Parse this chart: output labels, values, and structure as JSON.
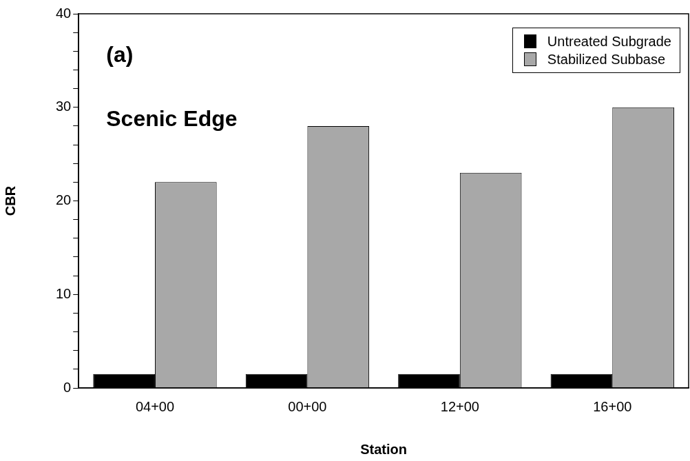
{
  "chart_data": {
    "type": "bar",
    "xlabel": "Station",
    "ylabel": "CBR",
    "categories": [
      "04+00",
      "00+00",
      "12+00",
      "16+00"
    ],
    "series": [
      {
        "name": "Untreated Subgrade",
        "color": "#000000",
        "values": [
          1.5,
          1.5,
          1.5,
          1.5
        ]
      },
      {
        "name": "Stabilized Subbase",
        "color": "#a8a8a8",
        "values": [
          22,
          28,
          23,
          30
        ]
      }
    ],
    "ylim": [
      0,
      40
    ],
    "yticks": [
      0,
      {
        "value": 2,
        "label": null
      },
      {
        "value": 4,
        "label": null
      },
      {
        "value": 6,
        "label": null
      },
      {
        "value": 8,
        "label": null
      },
      10,
      {
        "value": 12,
        "label": null
      },
      {
        "value": 14,
        "label": null
      },
      {
        "value": 16,
        "label": null
      },
      {
        "value": 18,
        "label": null
      },
      20,
      {
        "value": 22,
        "label": null
      },
      {
        "value": 24,
        "label": null
      },
      {
        "value": 26,
        "label": null
      },
      {
        "value": 28,
        "label": null
      },
      30,
      {
        "value": 32,
        "label": null
      },
      {
        "value": 34,
        "label": null
      },
      {
        "value": 36,
        "label": null
      },
      {
        "value": 38,
        "label": null
      },
      40
    ],
    "grid": false,
    "legend": "top right",
    "annotations": [
      "(a)",
      "Scenic Edge"
    ]
  }
}
